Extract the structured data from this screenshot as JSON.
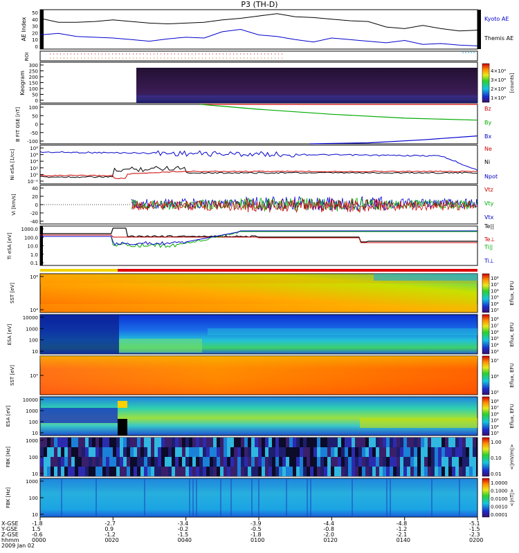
{
  "title": "P3 (TH-D)",
  "date_label": "2009 Jan 02",
  "chart_data": [
    {
      "type": "line",
      "id": "ae",
      "ylabel": "AE Index",
      "yticks": [
        "50",
        "40",
        "30",
        "20",
        "10",
        "0"
      ],
      "ylim": [
        0,
        50
      ],
      "x_range": [
        0,
        120
      ],
      "series": [
        {
          "name": "Kyoto AE",
          "color": "#000000",
          "x": [
            0,
            5,
            10,
            15,
            20,
            25,
            30,
            35,
            40,
            45,
            50,
            55,
            60,
            65,
            70,
            75,
            80,
            85,
            90,
            95,
            100,
            105,
            110,
            115,
            120
          ],
          "y": [
            39,
            34,
            34,
            35,
            37,
            35,
            33,
            32,
            33,
            34,
            37,
            39,
            42,
            45,
            41,
            40,
            38,
            36,
            35,
            28,
            26,
            30,
            26,
            23,
            24
          ]
        },
        {
          "name": "Themis AE",
          "color": "#0000cc",
          "x": [
            0,
            5,
            10,
            15,
            20,
            25,
            30,
            35,
            40,
            45,
            50,
            55,
            60,
            65,
            70,
            75,
            80,
            85,
            90,
            95,
            100,
            105,
            110,
            115,
            120
          ],
          "y": [
            18,
            20,
            16,
            15,
            14,
            12,
            10,
            13,
            15,
            14,
            22,
            25,
            18,
            16,
            12,
            9,
            14,
            12,
            10,
            8,
            11,
            6,
            7,
            5,
            4
          ]
        }
      ]
    },
    {
      "type": "line",
      "id": "roi",
      "ylabel": "ROI",
      "note": "ROI flag markers"
    },
    {
      "type": "heatmap",
      "id": "keogram",
      "ylabel": "Keogram",
      "yticks": [
        "300",
        "250",
        "200",
        "150",
        "100",
        "50",
        "0"
      ],
      "ylim": [
        0,
        300
      ],
      "colorbar_label": "[counts]",
      "colorbar_ticks": [
        "4×10⁴",
        "3×10⁴",
        "2×10⁴",
        "1×10⁴"
      ]
    },
    {
      "type": "line",
      "id": "bfield",
      "ylabel": "B FIT GSE [nT]",
      "yticks": [
        "100",
        "50",
        "0",
        "-50",
        "-100"
      ],
      "ylim": [
        -100,
        100
      ],
      "series": [
        {
          "name": "Bz",
          "color": "#cc0000",
          "x": [
            44,
            120
          ],
          "y": [
            100,
            100
          ]
        },
        {
          "name": "By",
          "color": "#00aa00",
          "x": [
            44,
            60,
            80,
            100,
            120
          ],
          "y": [
            100,
            75,
            50,
            30,
            20
          ]
        },
        {
          "name": "Bx",
          "color": "#0000cc",
          "x": [
            74,
            90,
            105,
            120
          ],
          "y": [
            -100,
            -95,
            -80,
            -60
          ]
        }
      ]
    },
    {
      "type": "line",
      "id": "density",
      "ylabel": "Ni eSA [1/cc]",
      "yticks": [
        "10⁸",
        "10⁶",
        "10⁴",
        "10²",
        "10⁰",
        "10⁻²"
      ],
      "series": [
        {
          "name": "Ne",
          "color": "#cc0000"
        },
        {
          "name": "Ni",
          "color": "#000000"
        },
        {
          "name": "Npot",
          "color": "#0000cc"
        }
      ]
    },
    {
      "type": "line",
      "id": "velocity",
      "ylabel": "Vi [km/s]",
      "yticks": [
        "40",
        "20",
        "0",
        "-20",
        "-40"
      ],
      "ylim": [
        -50,
        50
      ],
      "series": [
        {
          "name": "Vtz",
          "color": "#cc0000"
        },
        {
          "name": "Vty",
          "color": "#00aa00"
        },
        {
          "name": "Vtx",
          "color": "#0000cc"
        }
      ]
    },
    {
      "type": "line",
      "id": "temperature",
      "ylabel": "Ti eSA [eV]",
      "yticks": [
        "1000.0",
        "100.0",
        "10.0",
        "1.0",
        "0.1"
      ],
      "series": [
        {
          "name": "Te||",
          "color": "#000000"
        },
        {
          "name": "Te⊥",
          "color": "#cc0000"
        },
        {
          "name": "Ti||",
          "color": "#00aa00"
        },
        {
          "name": "Ti⊥",
          "color": "#0000cc"
        }
      ]
    },
    {
      "type": "heatmap",
      "id": "sst_e",
      "ylabel": "SST [eV]",
      "yticks": [
        "10⁶",
        "10⁴"
      ],
      "colorbar_label": "Eflux, EFU",
      "colorbar_ticks": [
        "10⁸",
        "10⁷",
        "10⁶",
        "10⁵",
        "10⁴",
        "10³"
      ]
    },
    {
      "type": "heatmap",
      "id": "esa_e",
      "ylabel": "ESA [eV]",
      "yticks": [
        "10000",
        "1000",
        "100",
        "10"
      ],
      "colorbar_label": "Eflux, EFU",
      "colorbar_ticks": [
        "10⁸",
        "10⁷",
        "10⁶",
        "10⁵",
        "10⁴",
        "10³"
      ]
    },
    {
      "type": "heatmap",
      "id": "sst_i",
      "ylabel": "SST [eV]",
      "yticks": [
        "10⁵"
      ],
      "colorbar_label": "Eflux, EFU",
      "colorbar_ticks": [
        "10⁷",
        "10⁶",
        "10⁵"
      ]
    },
    {
      "type": "heatmap",
      "id": "esa_i",
      "ylabel": "ESA [eV]",
      "yticks": [
        "10000",
        "1000",
        "100",
        "10"
      ],
      "colorbar_label": "Eflux, EFU",
      "colorbar_ticks": [
        "10⁸",
        "10⁷",
        "10⁶",
        "10⁵",
        "10⁴",
        "10³"
      ]
    },
    {
      "type": "heatmap",
      "id": "fbk_b",
      "ylabel": "FBK [Hz]",
      "yticks": [
        "1000",
        "100",
        "10"
      ],
      "colorbar_label": "<|mV/m|>",
      "colorbar_ticks": [
        "1.00",
        "0.10",
        "0.01"
      ]
    },
    {
      "type": "heatmap",
      "id": "fbk_e",
      "ylabel": "FBK [Hz]",
      "yticks": [
        "1000",
        "100",
        "10"
      ],
      "colorbar_label": "<|nT|>",
      "colorbar_ticks": [
        "1.0000",
        "0.1000",
        "0.0100",
        "0.0010",
        "0.0001"
      ]
    }
  ],
  "footer": {
    "row_labels": [
      "X-GSE",
      "Y-GSE",
      "Z-GSE",
      "hhmm"
    ],
    "columns": [
      {
        "x": "-1.8",
        "y": "1.5",
        "z": "-0.6",
        "t": "0000"
      },
      {
        "x": "-2.7",
        "y": "0.9",
        "z": "-1.2",
        "t": "0020"
      },
      {
        "x": "-3.4",
        "y": "-0.2",
        "z": "-1.5",
        "t": "0040"
      },
      {
        "x": "-3.9",
        "y": "-0.5",
        "z": "-1.8",
        "t": "0100"
      },
      {
        "x": "-4.4",
        "y": "-0.8",
        "z": "-2.0",
        "t": "0120"
      },
      {
        "x": "-4.8",
        "y": "-1.2",
        "z": "-2.1",
        "t": "0140"
      },
      {
        "x": "-5.1",
        "y": "-1.5",
        "z": "-2.3",
        "t": "0200"
      }
    ]
  },
  "colors": {
    "red": "#cc0000",
    "green": "#00aa00",
    "blue": "#0000cc",
    "black": "#000000"
  }
}
